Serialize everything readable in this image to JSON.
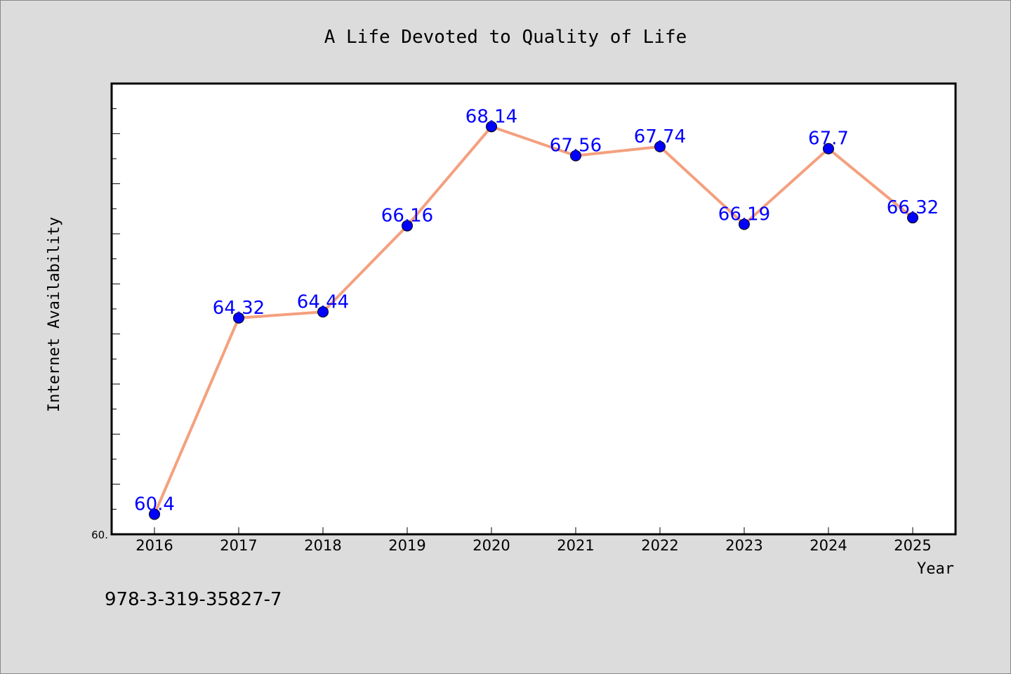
{
  "chart_data": {
    "type": "line",
    "title": "A Life Devoted to Quality of Life",
    "xlabel": "Year",
    "ylabel": "Internet Availability",
    "categories": [
      "2016",
      "2017",
      "2018",
      "2019",
      "2020",
      "2021",
      "2022",
      "2023",
      "2024",
      "2025"
    ],
    "series": [
      {
        "values": [
          60.4,
          64.32,
          64.44,
          66.16,
          68.14,
          67.56,
          67.74,
          66.19,
          67.7,
          66.32
        ]
      }
    ],
    "data_labels": [
      "60.4",
      "64.32",
      "64.44",
      "66.16",
      "68.14",
      "67.56",
      "67.74",
      "66.19",
      "67.7",
      "66.32"
    ],
    "ylim": [
      60.0,
      69.0
    ],
    "y_tick_label": "60.",
    "grid": false,
    "legend": "none",
    "colors": {
      "line": "#f4a07f",
      "marker": "#0000ff",
      "label": "#0000ff",
      "background": "#dcdcdc",
      "plot_area": "#ffffff"
    }
  },
  "footer": {
    "isbn": "978-3-319-35827-7"
  }
}
